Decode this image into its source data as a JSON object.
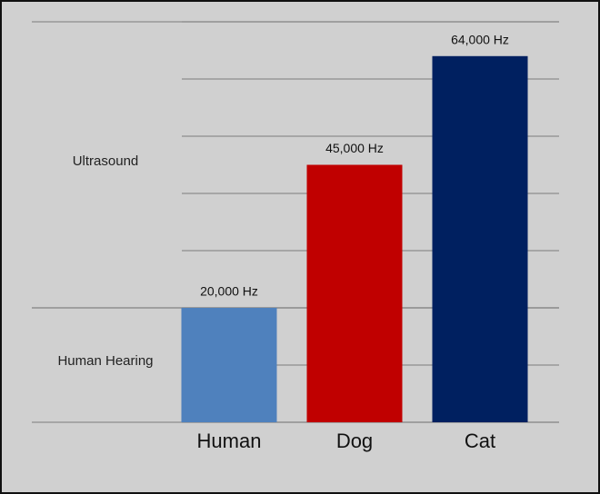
{
  "chart_data": {
    "type": "bar",
    "categories": [
      "Human",
      "Dog",
      "Cat"
    ],
    "values": [
      20000,
      45000,
      64000
    ],
    "value_labels": [
      "20,000 Hz",
      "45,000 Hz",
      "64,000 Hz"
    ],
    "colors": [
      "#4f81bd",
      "#c00000",
      "#002060"
    ],
    "ylim": [
      0,
      70000
    ],
    "yticks": [
      0,
      10000,
      20000,
      30000,
      40000,
      50000,
      60000,
      70000
    ],
    "grid": true,
    "bands": [
      {
        "label": "Human Hearing",
        "from": 0,
        "to": 20000
      },
      {
        "label": "Ultrasound",
        "from": 20000,
        "to": 70000
      }
    ]
  }
}
